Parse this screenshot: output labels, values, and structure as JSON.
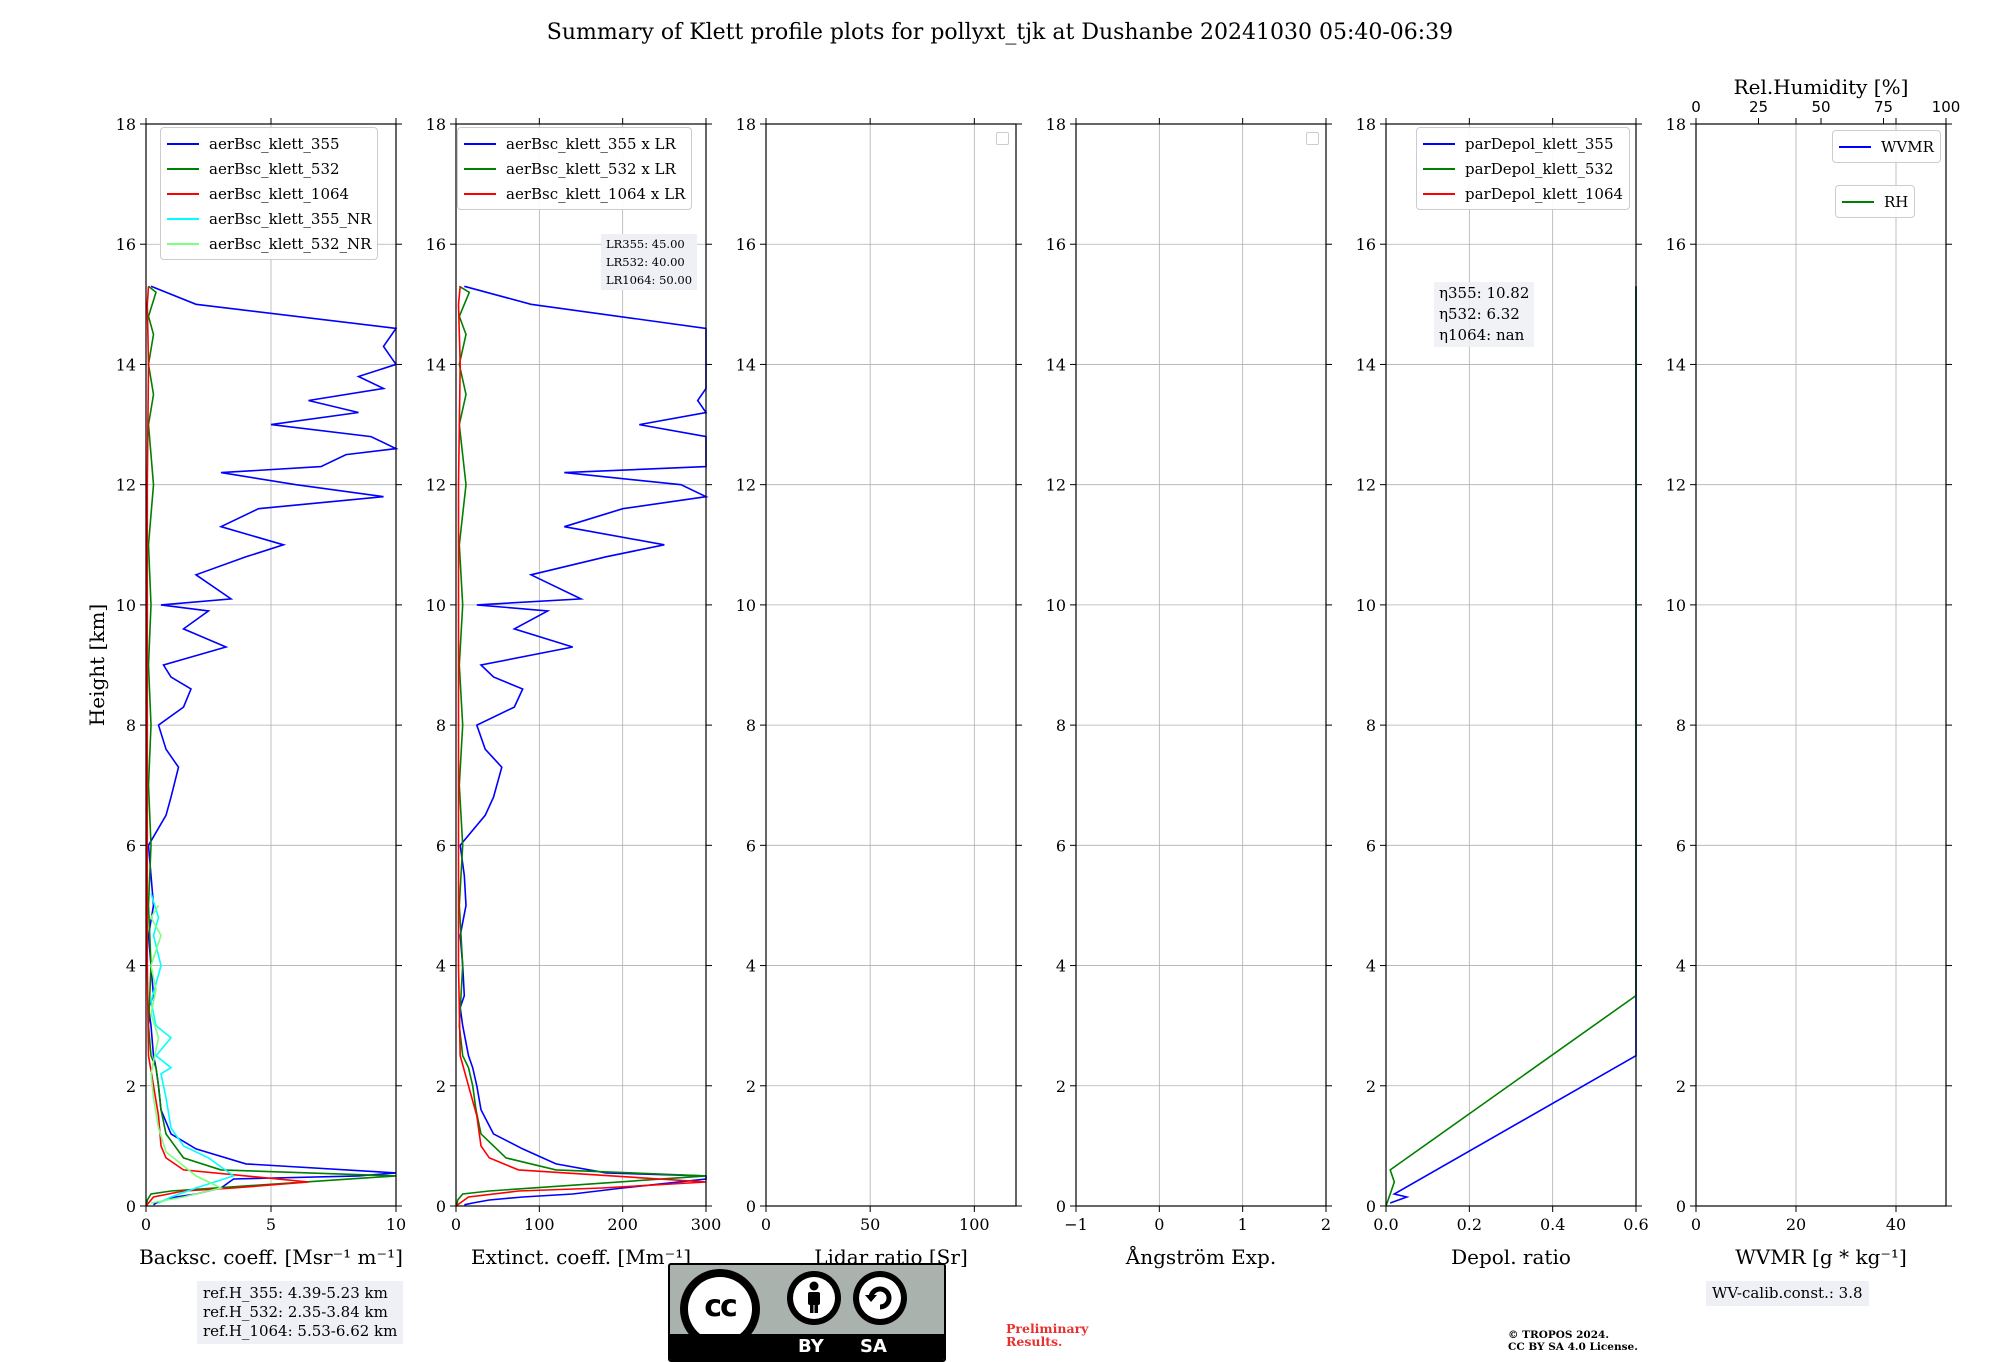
{
  "suptitle": "Summary of Klett profile plots for pollyxt_tjk at Dushanbe 20241030 05:40-06:39",
  "colors": {
    "ch355": "#0000ff",
    "ch532": "#008000",
    "ch1064": "#ff0000",
    "ch355nr": "#00ffff",
    "ch532nr": "#7fff7f"
  },
  "chart_data": [
    {
      "type": "line",
      "xlabel": "Backsc. coeff. [Msr⁻¹ m⁻¹]",
      "ylabel": "Height [km]",
      "xlim": [
        0,
        10
      ],
      "ylim": [
        0,
        18
      ],
      "xticks": [
        "0",
        "5",
        "10"
      ],
      "yticks": [
        "0",
        "2",
        "4",
        "6",
        "8",
        "10",
        "12",
        "14",
        "16",
        "18"
      ],
      "grid": true,
      "legend": [
        "aerBsc_klett_355",
        "aerBsc_klett_532",
        "aerBsc_klett_1064",
        "aerBsc_klett_355_NR",
        "aerBsc_klett_532_NR"
      ],
      "legend_position": "top",
      "series": [
        {
          "name": "aerBsc_klett_355",
          "x": [
            0.3,
            0.4,
            0.8,
            1.2,
            2.0,
            3.0,
            3.5,
            8.5,
            10.0,
            4.0,
            2.0,
            1.0,
            0.6,
            0.5,
            0.4,
            0.3,
            0.2,
            0.1,
            0.3,
            0.2,
            0.1,
            0.3,
            0.2,
            0.1,
            0.8,
            1.0,
            1.3,
            0.8,
            0.5,
            1.5,
            1.8,
            1.0,
            0.7,
            3.2,
            1.5,
            2.5,
            0.6,
            3.4,
            2.0,
            4.0,
            5.5,
            3.0,
            4.5,
            9.5,
            6.0,
            3.0,
            7.0,
            8.0,
            10.0,
            9.0,
            5.0,
            8.5,
            6.5,
            9.5,
            8.5,
            10.0,
            9.5,
            10.0,
            2.0,
            0.2
          ],
          "y": [
            0.02,
            0.05,
            0.1,
            0.15,
            0.2,
            0.3,
            0.45,
            0.5,
            0.55,
            0.7,
            0.95,
            1.2,
            1.6,
            2.0,
            2.3,
            2.5,
            3.0,
            3.3,
            3.5,
            4.0,
            4.5,
            5.0,
            5.5,
            6.0,
            6.5,
            6.8,
            7.3,
            7.6,
            8.0,
            8.3,
            8.6,
            8.8,
            9.0,
            9.3,
            9.6,
            9.9,
            10.0,
            10.1,
            10.5,
            10.8,
            11.0,
            11.3,
            11.6,
            11.8,
            12.0,
            12.2,
            12.3,
            12.5,
            12.6,
            12.8,
            13.0,
            13.2,
            13.4,
            13.6,
            13.8,
            14.0,
            14.3,
            14.6,
            15.0,
            15.3
          ]
        },
        {
          "name": "aerBsc_klett_532",
          "x": [
            0.02,
            0.05,
            0.2,
            1.0,
            10.0,
            3.0,
            1.5,
            0.8,
            0.6,
            0.5,
            0.4,
            0.2,
            0.1,
            0.2,
            0.1,
            0.2,
            0.1,
            0.2,
            0.1,
            0.2,
            0.1,
            0.3,
            0.1,
            0.3,
            0.1,
            0.3,
            0.1,
            0.4,
            0.1
          ],
          "y": [
            0.0,
            0.1,
            0.2,
            0.25,
            0.5,
            0.6,
            0.8,
            1.2,
            1.6,
            2.0,
            2.3,
            2.5,
            3.0,
            4.0,
            5.0,
            6.0,
            7.0,
            8.0,
            9.0,
            10.0,
            11.0,
            12.0,
            13.0,
            13.5,
            14.0,
            14.5,
            14.8,
            15.2,
            15.3
          ]
        },
        {
          "name": "aerBsc_klett_1064",
          "x": [
            0.0,
            0.3,
            1.5,
            3.5,
            6.5,
            1.5,
            0.8,
            0.6,
            0.5,
            0.3,
            0.1,
            0.05,
            0.05,
            0.05,
            0.1,
            0.05,
            0.1
          ],
          "y": [
            0.0,
            0.15,
            0.25,
            0.3,
            0.4,
            0.6,
            0.8,
            1.0,
            1.5,
            2.0,
            2.5,
            4.0,
            8.0,
            12.0,
            14.0,
            15.0,
            15.3
          ]
        },
        {
          "name": "aerBsc_klett_355_NR",
          "x": [
            0.5,
            1.0,
            2.0,
            3.5,
            2.5,
            1.5,
            1.0,
            0.8,
            0.6,
            1.0,
            0.4,
            1.0,
            0.4,
            0.2,
            0.6,
            0.3,
            0.5,
            0.2
          ],
          "y": [
            0.05,
            0.15,
            0.3,
            0.5,
            0.8,
            1.0,
            1.3,
            1.8,
            2.2,
            2.3,
            2.5,
            2.8,
            3.0,
            3.4,
            4.0,
            4.5,
            4.8,
            5.2
          ]
        },
        {
          "name": "aerBsc_klett_532_NR",
          "x": [
            0.2,
            1.5,
            3.0,
            2.0,
            0.8,
            0.5,
            0.3,
            0.2,
            0.5,
            0.2,
            0.4,
            0.2,
            0.6,
            0.2,
            0.5
          ],
          "y": [
            0.05,
            0.15,
            0.3,
            0.5,
            0.9,
            1.3,
            1.8,
            2.2,
            2.8,
            3.2,
            3.6,
            4.0,
            4.5,
            4.8,
            5.0
          ]
        }
      ],
      "annotation": [
        "ref.H_355: 4.39-5.23 km",
        "ref.H_532: 2.35-3.84 km",
        "ref.H_1064: 5.53-6.62 km"
      ]
    },
    {
      "type": "line",
      "xlabel": "Extinct. coeff. [Mm⁻¹]",
      "xlim": [
        0,
        300
      ],
      "ylim": [
        0,
        18
      ],
      "xticks": [
        "0",
        "100",
        "200",
        "300"
      ],
      "yticks": [
        "0",
        "2",
        "4",
        "6",
        "8",
        "10",
        "12",
        "14",
        "16",
        "18"
      ],
      "grid": true,
      "legend": [
        "aerBsc_klett_355 x LR",
        "aerBsc_klett_532 x LR",
        "aerBsc_klett_1064 x LR"
      ],
      "legend_position": "top-left",
      "lidar_ratios": [
        "LR355: 45.00",
        "LR532: 40.00",
        "LR1064: 50.00"
      ],
      "series": [
        {
          "name": "aerBsc_klett_355 x LR",
          "x": [
            10,
            20,
            40,
            80,
            140,
            200,
            300,
            300,
            180,
            120,
            80,
            45,
            30,
            25,
            20,
            15,
            8,
            5,
            10,
            8,
            5,
            12,
            10,
            5,
            35,
            45,
            55,
            35,
            25,
            70,
            80,
            45,
            30,
            140,
            70,
            110,
            25,
            150,
            90,
            180,
            250,
            130,
            200,
            300,
            270,
            130,
            300,
            300,
            300,
            300,
            220,
            300,
            290,
            300,
            300,
            300,
            300,
            300,
            90,
            10
          ],
          "y": [
            0.02,
            0.05,
            0.1,
            0.15,
            0.2,
            0.3,
            0.45,
            0.5,
            0.55,
            0.7,
            0.95,
            1.2,
            1.6,
            2.0,
            2.3,
            2.5,
            3.0,
            3.3,
            3.5,
            4.0,
            4.5,
            5.0,
            5.5,
            6.0,
            6.5,
            6.8,
            7.3,
            7.6,
            8.0,
            8.3,
            8.6,
            8.8,
            9.0,
            9.3,
            9.6,
            9.9,
            10.0,
            10.1,
            10.5,
            10.8,
            11.0,
            11.3,
            11.6,
            11.8,
            12.0,
            12.2,
            12.3,
            12.5,
            12.6,
            12.8,
            13.0,
            13.2,
            13.4,
            13.6,
            13.8,
            14.0,
            14.3,
            14.6,
            15.0,
            15.3
          ]
        },
        {
          "name": "aerBsc_klett_532 x LR",
          "x": [
            1,
            2,
            8,
            40,
            300,
            120,
            60,
            30,
            24,
            20,
            15,
            8,
            4,
            8,
            4,
            8,
            4,
            8,
            4,
            8,
            4,
            12,
            4,
            12,
            4,
            12,
            4,
            16,
            4
          ],
          "y": [
            0.0,
            0.1,
            0.2,
            0.25,
            0.5,
            0.6,
            0.8,
            1.2,
            1.6,
            2.0,
            2.3,
            2.5,
            3.0,
            4.0,
            5.0,
            6.0,
            7.0,
            8.0,
            9.0,
            10.0,
            11.0,
            12.0,
            13.0,
            13.5,
            14.0,
            14.5,
            14.8,
            15.2,
            15.3
          ]
        },
        {
          "name": "aerBsc_klett_1064 x LR",
          "x": [
            0,
            15,
            75,
            175,
            300,
            75,
            40,
            30,
            25,
            15,
            5,
            3,
            3,
            3,
            5,
            3,
            5
          ],
          "y": [
            0.0,
            0.15,
            0.25,
            0.3,
            0.4,
            0.6,
            0.8,
            1.0,
            1.5,
            2.0,
            2.5,
            4.0,
            8.0,
            12.0,
            14.0,
            15.0,
            15.3
          ]
        }
      ]
    },
    {
      "type": "line",
      "xlabel": "Lidar ratio [Sr]",
      "xlim": [
        0,
        120
      ],
      "ylim": [
        0,
        18
      ],
      "xticks": [
        "0",
        "50",
        "100"
      ],
      "yticks": [
        "0",
        "2",
        "4",
        "6",
        "8",
        "10",
        "12",
        "14",
        "16",
        "18"
      ],
      "grid": true,
      "series": []
    },
    {
      "type": "line",
      "xlabel": "Ångström Exp.",
      "xlim": [
        -1,
        2
      ],
      "ylim": [
        0,
        18
      ],
      "xticks": [
        "−1",
        "0",
        "1",
        "2"
      ],
      "yticks": [
        "0",
        "2",
        "4",
        "6",
        "8",
        "10",
        "12",
        "14",
        "16",
        "18"
      ],
      "grid": true,
      "series": []
    },
    {
      "type": "line",
      "xlabel": "Depol. ratio",
      "xlim": [
        0,
        0.6
      ],
      "ylim": [
        0,
        18
      ],
      "xticks": [
        "0.0",
        "0.2",
        "0.4",
        "0.6"
      ],
      "yticks": [
        "0",
        "2",
        "4",
        "6",
        "8",
        "10",
        "12",
        "14",
        "16",
        "18"
      ],
      "grid": true,
      "legend": [
        "parDepol_klett_355",
        "parDepol_klett_532",
        "parDepol_klett_1064"
      ],
      "legend_position": "top-left",
      "eta": [
        "η355: 10.82",
        "η532: 6.32",
        "η1064: nan"
      ],
      "series": [
        {
          "name": "parDepol_klett_355",
          "x": [
            0.01,
            0.03,
            0.05,
            0.02,
            0.6,
            0.6,
            0.6,
            0.6,
            0.6,
            0.6,
            0.6,
            0.6,
            0.6,
            0.6,
            0.6
          ],
          "y": [
            0.05,
            0.1,
            0.15,
            0.2,
            2.5,
            3.0,
            4.0,
            5.0,
            6.0,
            7.0,
            8.0,
            9.0,
            10.0,
            12.0,
            15.3
          ]
        },
        {
          "name": "parDepol_klett_532",
          "x": [
            0.0,
            0.01,
            0.02,
            0.01,
            0.6,
            0.6,
            0.6,
            0.6,
            0.6,
            0.6,
            0.6,
            0.6,
            0.6
          ],
          "y": [
            0.0,
            0.2,
            0.4,
            0.6,
            3.5,
            4.5,
            5.5,
            6.5,
            8.5,
            10.0,
            12.0,
            13.0,
            15.3
          ]
        },
        {
          "name": "parDepol_klett_1064",
          "x": [],
          "y": []
        }
      ]
    },
    {
      "type": "line",
      "xlabel": "WVMR [g * kg⁻¹]",
      "xlabel_top": "Rel.Humidity [%]",
      "xlim": [
        0,
        50
      ],
      "xlim_top": [
        0,
        100
      ],
      "ylim": [
        0,
        18
      ],
      "xticks": [
        "0",
        "20",
        "40"
      ],
      "xticks_top": [
        "0",
        "25",
        "50",
        "75",
        "100"
      ],
      "yticks": [
        "0",
        "2",
        "4",
        "6",
        "8",
        "10",
        "12",
        "14",
        "16",
        "18"
      ],
      "grid": true,
      "legend": [
        "WVMR",
        "RH"
      ],
      "legend_position": "top-right",
      "series": [],
      "annotation": "WV-calib.const.: 3.8"
    }
  ],
  "license": {
    "cc": "cc",
    "by": "BY",
    "sa": "SA"
  },
  "preliminary": [
    "Preliminary",
    "Results."
  ],
  "copyright": [
    "© TROPOS 2024.",
    "CC BY SA 4.0 License."
  ]
}
